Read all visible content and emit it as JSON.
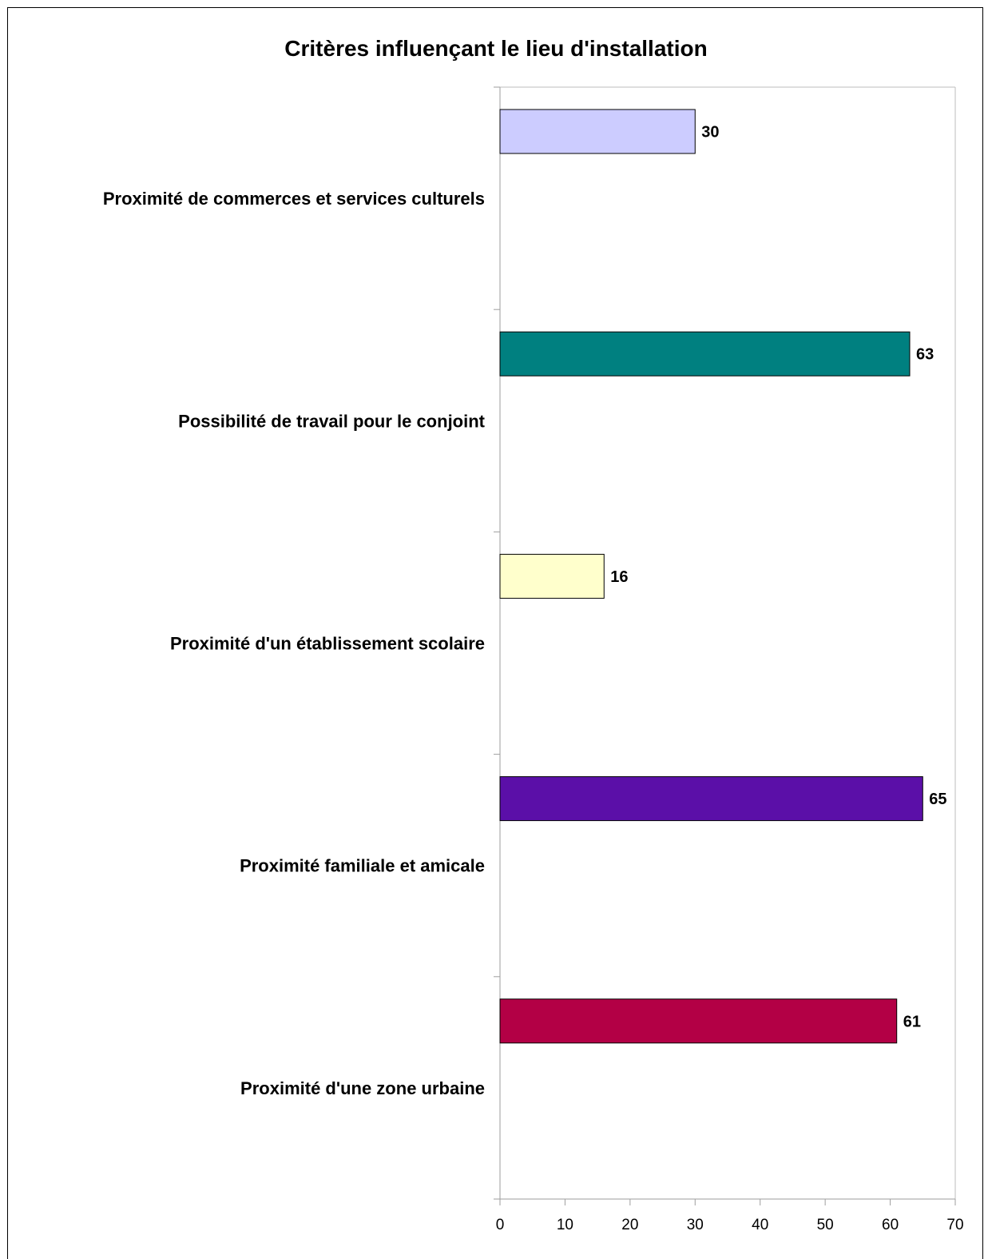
{
  "chart_data": {
    "type": "bar",
    "orientation": "horizontal",
    "title": "Critères influençant le lieu d'installation",
    "categories": [
      "Proximité de commerces et services culturels",
      "Possibilité de travail pour le conjoint",
      "Proximité d'un établissement scolaire",
      "Proximité familiale et amicale",
      "Proximité d'une zone urbaine"
    ],
    "values": [
      30,
      63,
      16,
      65,
      61
    ],
    "colors": [
      "#CCCCFF",
      "#008080",
      "#FFFFCC",
      "#5B0FA8",
      "#B30045"
    ],
    "data_labels": [
      "30",
      "63",
      "16",
      "65",
      "61"
    ],
    "xlim": [
      0,
      70
    ],
    "x_ticks": [
      "0",
      "10",
      "20",
      "30",
      "40",
      "50",
      "60",
      "70"
    ],
    "grid": false,
    "legend": "none"
  }
}
